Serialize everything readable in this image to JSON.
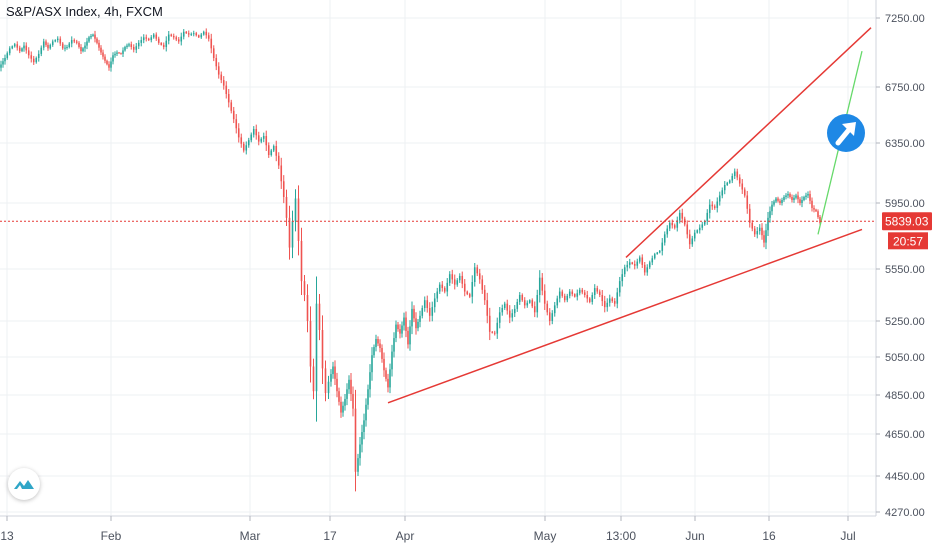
{
  "header": {
    "title": "S&P/ASX Index, 4h, FXCM"
  },
  "price_label": {
    "value": "5839.03",
    "countdown": "20:57"
  },
  "colors": {
    "up": "#26a69a",
    "down": "#ef5350",
    "trendline": "#e53935",
    "projection": "#66d96a",
    "arrow_badge": "#1e88e5",
    "price_line": "#e53935",
    "grid": "#eef0f3",
    "axis_text": "#4c525e"
  },
  "icons": {
    "logo": "tradingview-logo-icon",
    "arrow": "arrow-up-right-icon"
  },
  "chart_data": {
    "type": "candlestick",
    "title": "S&P/ASX Index, 4h, FXCM",
    "x_tick_labels": [
      "13",
      "Feb",
      "Mar",
      "17",
      "Apr",
      "May",
      "13:00",
      "Jun",
      "16",
      "Jul"
    ],
    "y_tick_labels": [
      "7250.00",
      "6750.00",
      "6350.00",
      "5950.00",
      "5550.00",
      "5250.00",
      "5050.00",
      "4850.00",
      "4650.00",
      "4450.00",
      "4270.00"
    ],
    "ylim": [
      4270,
      7250
    ],
    "last_price": 5839.03,
    "grid": true,
    "price_path": [
      [
        0,
        6890
      ],
      [
        6,
        6960
      ],
      [
        11,
        7030
      ],
      [
        16,
        7060
      ],
      [
        21,
        7010
      ],
      [
        25,
        7050
      ],
      [
        30,
        6980
      ],
      [
        35,
        6930
      ],
      [
        40,
        6990
      ],
      [
        45,
        7080
      ],
      [
        49,
        7030
      ],
      [
        54,
        7080
      ],
      [
        59,
        7100
      ],
      [
        64,
        7030
      ],
      [
        68,
        7040
      ],
      [
        73,
        7090
      ],
      [
        78,
        7070
      ],
      [
        82,
        7010
      ],
      [
        86,
        7050
      ],
      [
        90,
        7110
      ],
      [
        94,
        7130
      ],
      [
        98,
        7070
      ],
      [
        102,
        7000
      ],
      [
        106,
        6940
      ],
      [
        110,
        6890
      ],
      [
        114,
        6980
      ],
      [
        118,
        7000
      ],
      [
        122,
        6990
      ],
      [
        126,
        7040
      ],
      [
        130,
        7060
      ],
      [
        135,
        7020
      ],
      [
        140,
        7070
      ],
      [
        145,
        7110
      ],
      [
        150,
        7090
      ],
      [
        155,
        7130
      ],
      [
        160,
        7070
      ],
      [
        165,
        7040
      ],
      [
        170,
        7130
      ],
      [
        175,
        7110
      ],
      [
        180,
        7080
      ],
      [
        185,
        7150
      ],
      [
        190,
        7130
      ],
      [
        195,
        7140
      ],
      [
        200,
        7110
      ],
      [
        205,
        7150
      ],
      [
        210,
        7100
      ],
      [
        215,
        6960
      ],
      [
        220,
        6840
      ],
      [
        225,
        6760
      ],
      [
        230,
        6640
      ],
      [
        235,
        6520
      ],
      [
        240,
        6390
      ],
      [
        245,
        6300
      ],
      [
        250,
        6370
      ],
      [
        255,
        6450
      ],
      [
        260,
        6360
      ],
      [
        265,
        6400
      ],
      [
        270,
        6270
      ],
      [
        275,
        6330
      ],
      [
        280,
        6200
      ],
      [
        285,
        5990
      ],
      [
        288,
        5860
      ],
      [
        291,
        5680
      ],
      [
        294,
        5840
      ],
      [
        297,
        5980
      ],
      [
        300,
        5720
      ],
      [
        303,
        5480
      ],
      [
        306,
        5400
      ],
      [
        309,
        5250
      ],
      [
        312,
        5000
      ],
      [
        315,
        4870
      ],
      [
        318,
        5350
      ],
      [
        321,
        5200
      ],
      [
        324,
        4990
      ],
      [
        327,
        4860
      ],
      [
        330,
        4920
      ],
      [
        334,
        5000
      ],
      [
        338,
        4870
      ],
      [
        342,
        4760
      ],
      [
        346,
        4830
      ],
      [
        350,
        4930
      ],
      [
        354,
        4780
      ],
      [
        357,
        4470
      ],
      [
        361,
        4600
      ],
      [
        365,
        4720
      ],
      [
        369,
        4880
      ],
      [
        373,
        5060
      ],
      [
        377,
        5150
      ],
      [
        381,
        5100
      ],
      [
        385,
        4980
      ],
      [
        389,
        4890
      ],
      [
        393,
        5080
      ],
      [
        397,
        5230
      ],
      [
        401,
        5180
      ],
      [
        405,
        5270
      ],
      [
        409,
        5120
      ],
      [
        413,
        5320
      ],
      [
        417,
        5210
      ],
      [
        421,
        5280
      ],
      [
        426,
        5370
      ],
      [
        431,
        5280
      ],
      [
        436,
        5380
      ],
      [
        441,
        5460
      ],
      [
        446,
        5420
      ],
      [
        451,
        5520
      ],
      [
        456,
        5460
      ],
      [
        461,
        5510
      ],
      [
        466,
        5420
      ],
      [
        471,
        5390
      ],
      [
        476,
        5560
      ],
      [
        481,
        5490
      ],
      [
        486,
        5370
      ],
      [
        491,
        5190
      ],
      [
        496,
        5180
      ],
      [
        501,
        5300
      ],
      [
        506,
        5350
      ],
      [
        511,
        5270
      ],
      [
        516,
        5320
      ],
      [
        521,
        5400
      ],
      [
        526,
        5340
      ],
      [
        531,
        5370
      ],
      [
        536,
        5300
      ],
      [
        541,
        5500
      ],
      [
        546,
        5350
      ],
      [
        551,
        5250
      ],
      [
        556,
        5340
      ],
      [
        561,
        5420
      ],
      [
        566,
        5370
      ],
      [
        571,
        5420
      ],
      [
        576,
        5390
      ],
      [
        581,
        5430
      ],
      [
        586,
        5400
      ],
      [
        591,
        5360
      ],
      [
        596,
        5440
      ],
      [
        601,
        5400
      ],
      [
        606,
        5330
      ],
      [
        611,
        5380
      ],
      [
        616,
        5350
      ],
      [
        621,
        5480
      ],
      [
        626,
        5560
      ],
      [
        631,
        5590
      ],
      [
        636,
        5570
      ],
      [
        641,
        5620
      ],
      [
        646,
        5530
      ],
      [
        651,
        5590
      ],
      [
        656,
        5640
      ],
      [
        661,
        5660
      ],
      [
        666,
        5760
      ],
      [
        671,
        5830
      ],
      [
        676,
        5800
      ],
      [
        681,
        5890
      ],
      [
        686,
        5820
      ],
      [
        691,
        5700
      ],
      [
        696,
        5770
      ],
      [
        701,
        5800
      ],
      [
        706,
        5840
      ],
      [
        711,
        5940
      ],
      [
        716,
        5920
      ],
      [
        721,
        6000
      ],
      [
        726,
        6070
      ],
      [
        731,
        6100
      ],
      [
        736,
        6160
      ],
      [
        741,
        6080
      ],
      [
        746,
        6000
      ],
      [
        751,
        5830
      ],
      [
        756,
        5760
      ],
      [
        761,
        5800
      ],
      [
        765,
        5710
      ],
      [
        769,
        5860
      ],
      [
        773,
        5940
      ],
      [
        777,
        5980
      ],
      [
        781,
        5950
      ],
      [
        785,
        5990
      ],
      [
        789,
        6010
      ],
      [
        793,
        5970
      ],
      [
        797,
        6000
      ],
      [
        801,
        5950
      ],
      [
        805,
        5990
      ],
      [
        809,
        6010
      ],
      [
        813,
        5920
      ],
      [
        817,
        5900
      ],
      [
        821,
        5830
      ]
    ],
    "trendlines": [
      {
        "from": [
          388,
          4810
        ],
        "to": [
          862,
          5790
        ]
      },
      {
        "from": [
          626,
          5620
        ],
        "to": [
          871,
          7180
        ]
      }
    ],
    "projection_line": {
      "from": [
        818,
        5760
      ],
      "to": [
        862,
        7010
      ]
    },
    "price_axis_marks": [
      7250,
      6750,
      6350,
      5950,
      5550,
      5250,
      5050,
      4850,
      4650,
      4450,
      4270
    ]
  }
}
